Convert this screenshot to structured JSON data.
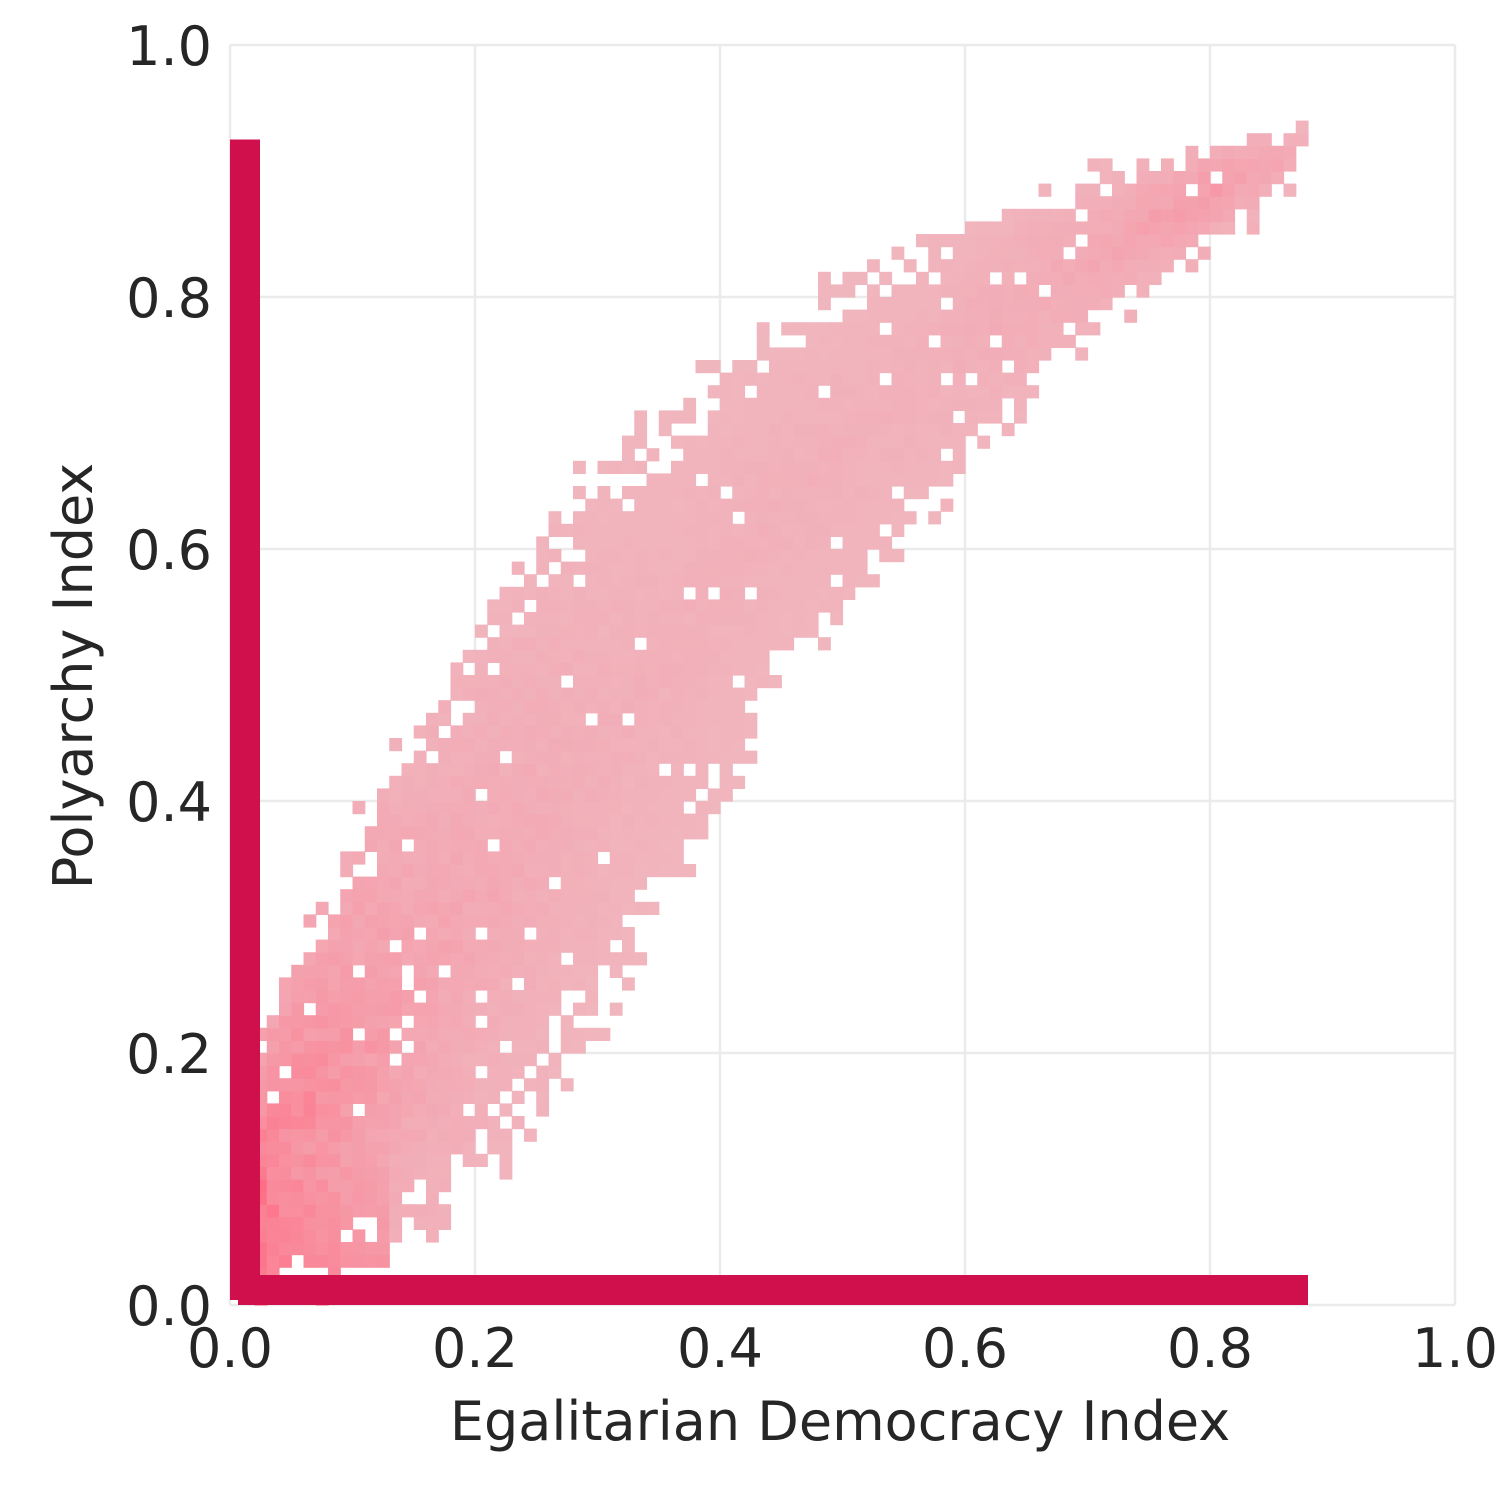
{
  "chart_data": {
    "type": "heatmap",
    "xlabel": "Egalitarian Democracy Index",
    "ylabel": "Polyarchy Index",
    "xlim": [
      0.0,
      1.0
    ],
    "ylim": [
      0.0,
      1.0
    ],
    "x_ticks": [
      "0.0",
      "0.2",
      "0.4",
      "0.6",
      "0.8",
      "1.0"
    ],
    "y_ticks": [
      "0.0",
      "0.2",
      "0.4",
      "0.6",
      "0.8",
      "1.0"
    ],
    "grid": true,
    "colors": {
      "rug": "#d0104c",
      "cell_light": "#f0b8c0",
      "cell_dark": "#ff6b82",
      "grid": "#ebebeb",
      "text": "#262626"
    },
    "density_band": [
      {
        "x": 0.02,
        "y_low": 0.0,
        "y_high": 0.19,
        "peak": 1.0
      },
      {
        "x": 0.05,
        "y_low": 0.0,
        "y_high": 0.28,
        "peak": 0.75
      },
      {
        "x": 0.1,
        "y_low": 0.02,
        "y_high": 0.37,
        "peak": 0.55
      },
      {
        "x": 0.15,
        "y_low": 0.06,
        "y_high": 0.45,
        "peak": 0.35
      },
      {
        "x": 0.2,
        "y_low": 0.09,
        "y_high": 0.53,
        "peak": 0.25
      },
      {
        "x": 0.25,
        "y_low": 0.15,
        "y_high": 0.62,
        "peak": 0.2
      },
      {
        "x": 0.3,
        "y_low": 0.22,
        "y_high": 0.66,
        "peak": 0.15
      },
      {
        "x": 0.35,
        "y_low": 0.31,
        "y_high": 0.7,
        "peak": 0.12
      },
      {
        "x": 0.4,
        "y_low": 0.4,
        "y_high": 0.74,
        "peak": 0.12
      },
      {
        "x": 0.45,
        "y_low": 0.5,
        "y_high": 0.78,
        "peak": 0.12
      },
      {
        "x": 0.5,
        "y_low": 0.55,
        "y_high": 0.81,
        "peak": 0.12
      },
      {
        "x": 0.55,
        "y_low": 0.61,
        "y_high": 0.84,
        "peak": 0.12
      },
      {
        "x": 0.6,
        "y_low": 0.67,
        "y_high": 0.86,
        "peak": 0.15
      },
      {
        "x": 0.65,
        "y_low": 0.72,
        "y_high": 0.88,
        "peak": 0.2
      },
      {
        "x": 0.7,
        "y_low": 0.77,
        "y_high": 0.89,
        "peak": 0.25
      },
      {
        "x": 0.75,
        "y_low": 0.81,
        "y_high": 0.91,
        "peak": 0.35
      },
      {
        "x": 0.8,
        "y_low": 0.85,
        "y_high": 0.92,
        "peak": 0.45
      },
      {
        "x": 0.85,
        "y_low": 0.88,
        "y_high": 0.93,
        "peak": 0.3
      },
      {
        "x": 0.88,
        "y_low": 0.9,
        "y_high": 0.93,
        "peak": 0.2
      }
    ],
    "marginal_x": {
      "min": 0.0,
      "max": 0.88
    },
    "marginal_y": {
      "min": 0.0,
      "max": 0.925
    }
  }
}
